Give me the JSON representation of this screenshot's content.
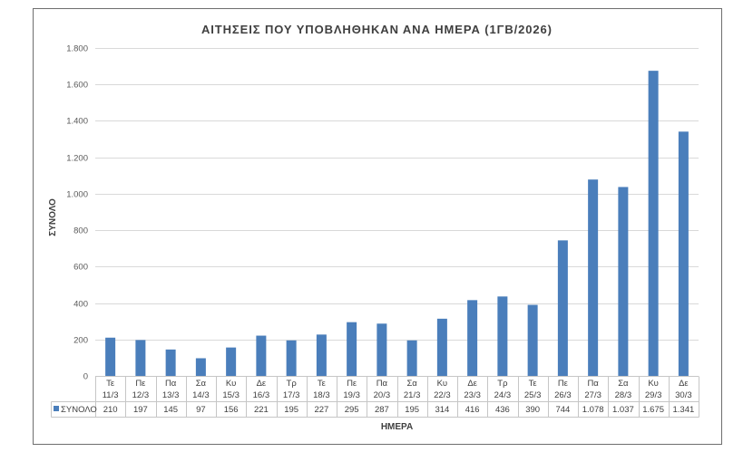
{
  "chart_data": {
    "type": "bar",
    "title": "ΑΙΤΗΣΕΙΣ ΠΟΥ ΥΠΟΒΛΗΘΗΚΑΝ ΑΝΑ ΗΜΕΡΑ (1ΓΒ/2026)",
    "xlabel": "ΗΜΕΡΑ",
    "ylabel": "ΣΥΝΟΛΟ",
    "ylim": [
      0,
      1800
    ],
    "yticks": [
      0,
      200,
      400,
      600,
      800,
      1000,
      1200,
      1400,
      1600,
      1800
    ],
    "ytick_labels": [
      "0",
      "200",
      "400",
      "600",
      "800",
      "1.000",
      "1.200",
      "1.400",
      "1.600",
      "1.800"
    ],
    "categories": [
      [
        "Τε",
        "11/3"
      ],
      [
        "Πε",
        "12/3"
      ],
      [
        "Πα",
        "13/3"
      ],
      [
        "Σα",
        "14/3"
      ],
      [
        "Κυ",
        "15/3"
      ],
      [
        "Δε",
        "16/3"
      ],
      [
        "Τρ",
        "17/3"
      ],
      [
        "Τε",
        "18/3"
      ],
      [
        "Πε",
        "19/3"
      ],
      [
        "Πα",
        "20/3"
      ],
      [
        "Σα",
        "21/3"
      ],
      [
        "Κυ",
        "22/3"
      ],
      [
        "Δε",
        "23/3"
      ],
      [
        "Τρ",
        "24/3"
      ],
      [
        "Τε",
        "25/3"
      ],
      [
        "Πε",
        "26/3"
      ],
      [
        "Πα",
        "27/3"
      ],
      [
        "Σα",
        "28/3"
      ],
      [
        "Κυ",
        "29/3"
      ],
      [
        "Δε",
        "30/3"
      ]
    ],
    "series": [
      {
        "name": "ΣΥΝΟΛΟ",
        "color": "#4A7EBB",
        "values": [
          210,
          197,
          145,
          97,
          156,
          221,
          195,
          227,
          295,
          287,
          195,
          314,
          416,
          436,
          390,
          744,
          1078,
          1037,
          1675,
          1341
        ],
        "value_labels": [
          "210",
          "197",
          "145",
          "97",
          "156",
          "221",
          "195",
          "227",
          "295",
          "287",
          "195",
          "314",
          "416",
          "436",
          "390",
          "744",
          "1.078",
          "1.037",
          "1.675",
          "1.341"
        ]
      }
    ],
    "grid": true,
    "legend": "data-table"
  }
}
